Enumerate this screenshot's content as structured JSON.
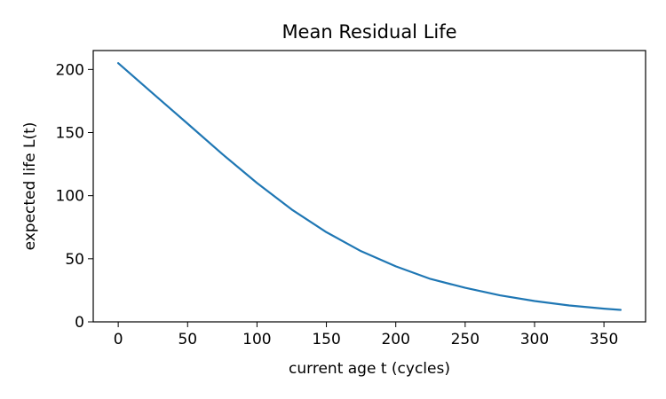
{
  "chart_data": {
    "type": "line",
    "title": "Mean Residual Life",
    "xlabel": "current age t (cycles)",
    "ylabel": "expected life L(t)",
    "xlim": [
      -18,
      380
    ],
    "ylim": [
      0,
      215
    ],
    "xticks": [
      0,
      50,
      100,
      150,
      200,
      250,
      300,
      350
    ],
    "yticks": [
      0,
      50,
      100,
      150,
      200
    ],
    "grid": false,
    "series": [
      {
        "color": "#1f77b4",
        "x": [
          0,
          25,
          50,
          75,
          100,
          125,
          150,
          175,
          200,
          225,
          250,
          275,
          300,
          325,
          350,
          362
        ],
        "y": [
          205,
          181,
          157,
          133,
          110,
          89,
          71,
          56,
          44,
          34,
          27,
          21,
          16.5,
          13,
          10.5,
          9.5
        ]
      }
    ]
  }
}
